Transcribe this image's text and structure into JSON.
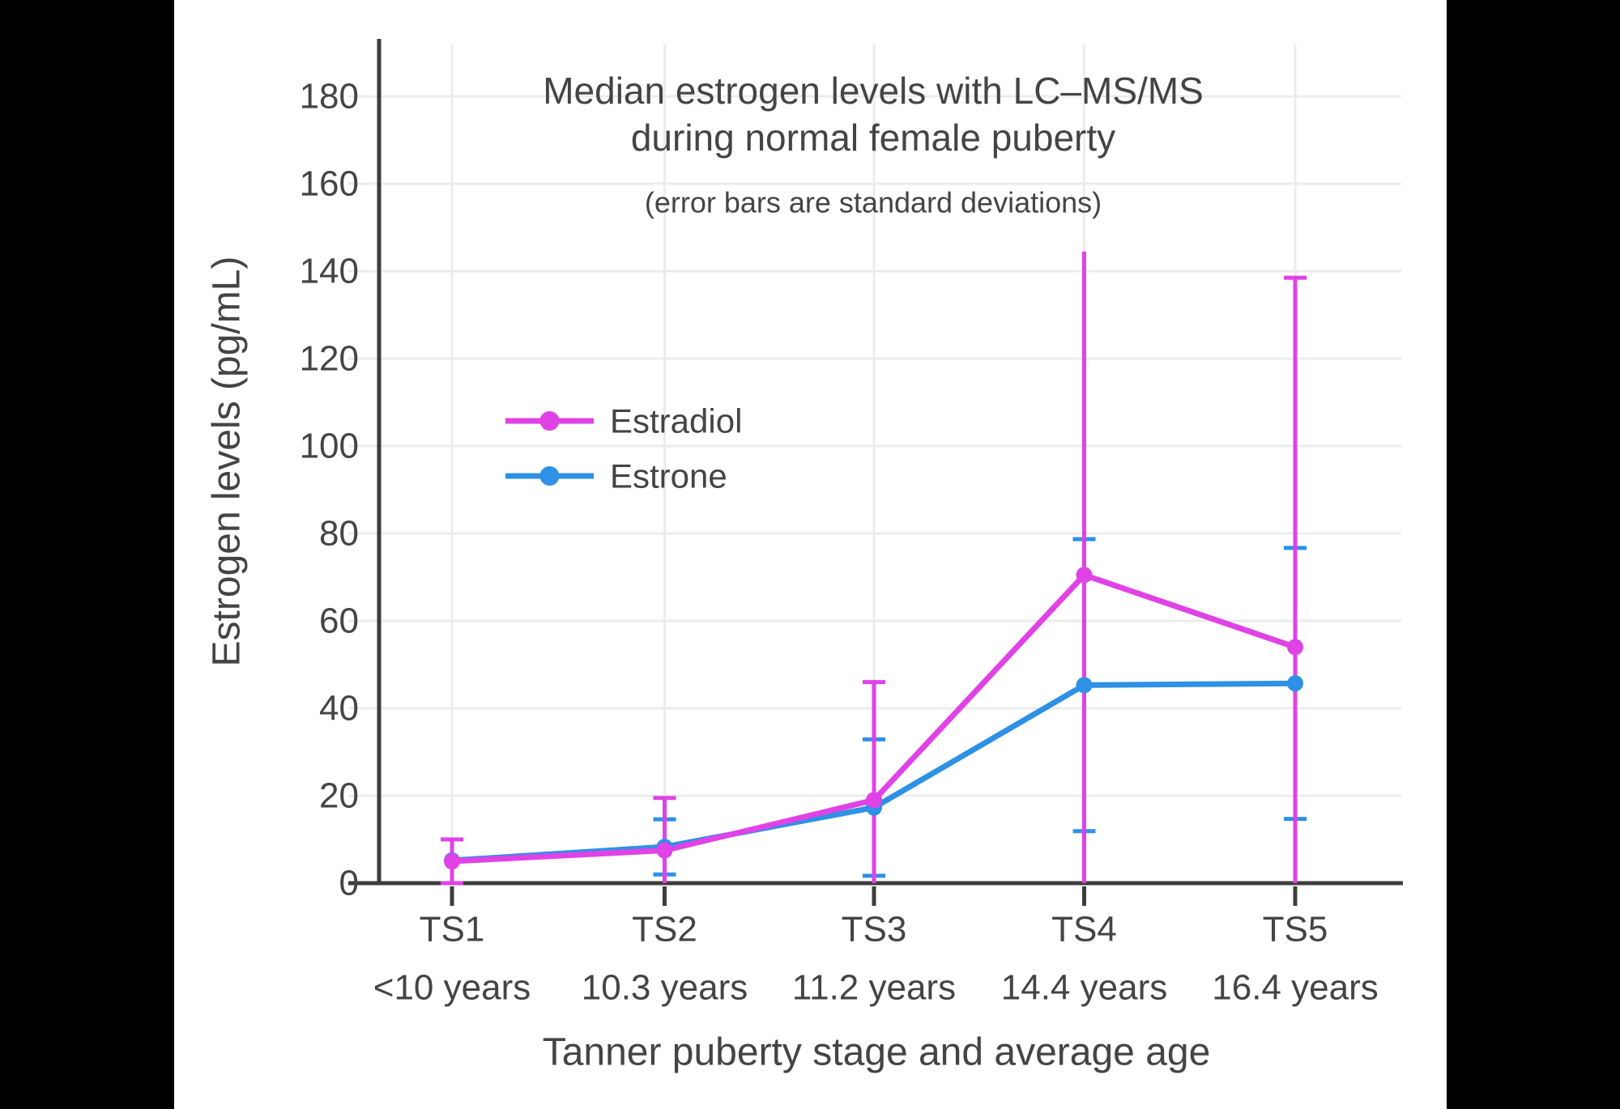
{
  "frame": {
    "letterbox_color": "#000000",
    "canvas_color": "#ffffff"
  },
  "colors": {
    "estradiol": "#e042e6",
    "estrone": "#2e91e5",
    "grid": "#ececec",
    "axis": "#3d3d3d",
    "text": "#444444"
  },
  "chart_data": {
    "type": "line",
    "title": "Median estrogen levels with LC–MS/MS",
    "title_line2": "during normal female puberty",
    "subtitle": "(error bars are standard deviations)",
    "xlabel": "Tanner puberty stage and average age",
    "ylabel": "Estrogen levels (pg/mL)",
    "categories": [
      "TS1",
      "TS2",
      "TS3",
      "TS4",
      "TS5"
    ],
    "category_ages": [
      "<10 years",
      "10.3 years",
      "11.2 years",
      "14.4 years",
      "16.4 years"
    ],
    "ylim": [
      0,
      193
    ],
    "yticks": [
      0,
      20,
      40,
      60,
      80,
      100,
      120,
      140,
      160,
      180
    ],
    "grid": true,
    "legend": {
      "entries": [
        "Estradiol",
        "Estrone"
      ],
      "position": "inside-upper-left"
    },
    "error_bars": "standard deviations, clipped at y=0",
    "series": [
      {
        "name": "Estradiol",
        "color": "#e042e6",
        "values": [
          5,
          7.5,
          19,
          70.5,
          54
        ],
        "sd": [
          5,
          12,
          27,
          74,
          84.5
        ],
        "top_caps": [
          true,
          true,
          true,
          false,
          true
        ]
      },
      {
        "name": "Estrone",
        "color": "#2e91e5",
        "values": [
          5.2,
          8.3,
          17.3,
          45.3,
          45.7
        ],
        "sd": [
          null,
          6.3,
          15.6,
          33.4,
          31
        ],
        "top_caps": [
          true,
          true,
          true,
          true,
          true
        ]
      }
    ]
  }
}
